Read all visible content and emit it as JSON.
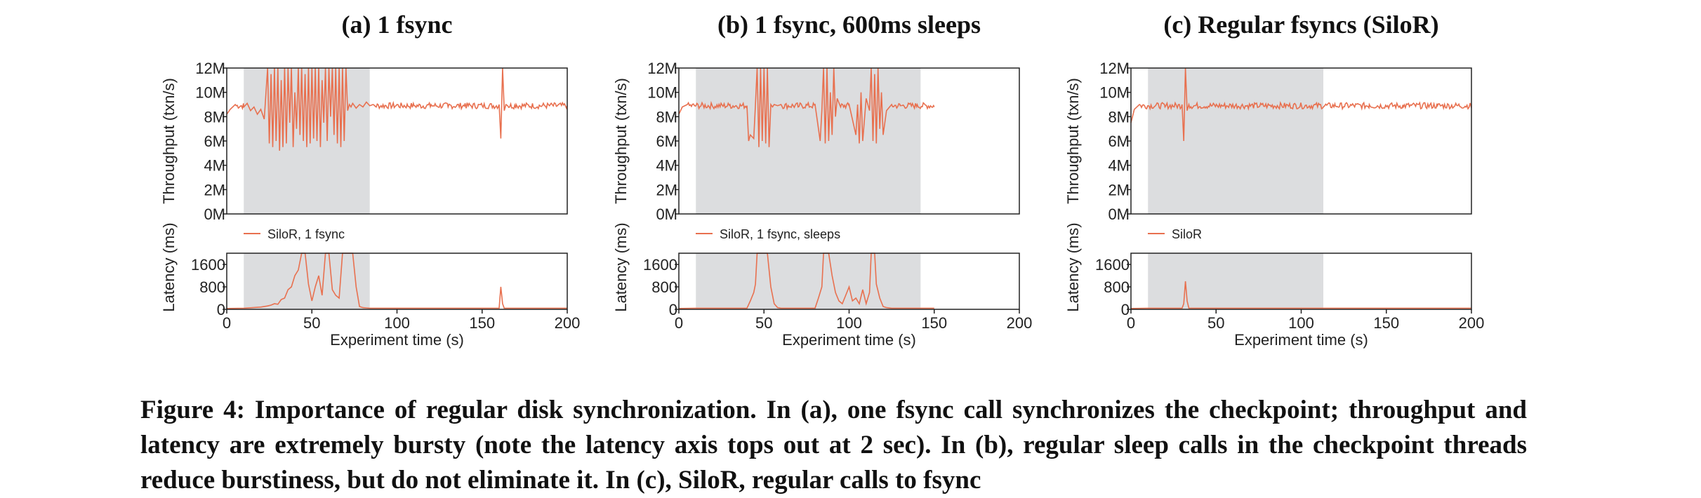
{
  "colors": {
    "series": "#e8704f",
    "shade": "#dcdddf",
    "axis": "#222222"
  },
  "caption": "Figure 4: Importance of regular disk synchronization. In (a), one fsync call synchronizes the checkpoint; throughput and latency are extremely bursty (note the latency axis tops out at 2 sec). In (b), regular sleep calls in the checkpoint threads reduce burstiness, but do not eliminate it. In (c), SiloR, regular calls to fsync",
  "chart_data": [
    {
      "type": "line",
      "title": "(a) 1 fsync",
      "xlabel": "Experiment time (s)",
      "xlim": [
        0,
        200
      ],
      "xticks": [
        "0",
        "50",
        "100",
        "150",
        "200"
      ],
      "shaded_region_s": [
        10,
        84
      ],
      "throughput": {
        "ylabel": "Throughput (txn/s)",
        "ylim": [
          0,
          12
        ],
        "yticks": [
          "0M",
          "2M",
          "4M",
          "6M",
          "8M",
          "10M",
          "12M"
        ],
        "legend": "SiloR, 1 fsync",
        "series_x": [
          0,
          2,
          5,
          10,
          12,
          14,
          16,
          18,
          20,
          22,
          24,
          25,
          26,
          27,
          28,
          29,
          30,
          31,
          32,
          33,
          34,
          35,
          36,
          37,
          38,
          39,
          40,
          41,
          42,
          43,
          44,
          45,
          46,
          47,
          48,
          49,
          50,
          51,
          52,
          53,
          54,
          55,
          56,
          57,
          58,
          59,
          60,
          61,
          62,
          63,
          64,
          65,
          66,
          67,
          68,
          69,
          70,
          71,
          72,
          73,
          74,
          76,
          78,
          80,
          82,
          84,
          86,
          90,
          100,
          110,
          120,
          130,
          140,
          150,
          160,
          161,
          162,
          163,
          164,
          165,
          170,
          180,
          190,
          200
        ],
        "series_y": [
          8.2,
          8.6,
          9.0,
          8.8,
          9.1,
          8.5,
          8.8,
          8.2,
          8.6,
          7.8,
          12,
          5.8,
          11.5,
          5.5,
          12,
          6.0,
          12,
          5.2,
          11,
          5.5,
          12,
          5.8,
          12,
          7.5,
          12,
          5.5,
          10,
          7.0,
          12,
          6.5,
          12,
          6.0,
          11.5,
          5.5,
          12,
          5.8,
          12,
          6.2,
          12,
          6.0,
          12,
          5.5,
          11,
          7.5,
          12,
          6.0,
          12,
          8.0,
          12,
          6.5,
          12,
          5.8,
          12,
          5.5,
          12,
          6.0,
          12,
          8.5,
          9.0,
          8.8,
          9.1,
          8.7,
          9.0,
          8.8,
          9.2,
          8.9,
          9.0,
          8.8,
          9.0,
          8.9,
          9.0,
          8.8,
          9.1,
          8.9,
          9.0,
          6.2,
          12,
          8.5,
          9.0,
          8.9,
          9.0,
          8.8,
          9.0,
          8.9
        ],
        "noise_range": [
          60,
          200
        ]
      },
      "latency": {
        "ylabel": "Latency (ms)",
        "ylim": [
          0,
          2000
        ],
        "yticks": [
          "0",
          "800",
          "1600"
        ],
        "series_x": [
          0,
          10,
          20,
          24,
          26,
          28,
          30,
          32,
          34,
          36,
          38,
          40,
          42,
          44,
          46,
          48,
          50,
          52,
          54,
          56,
          58,
          60,
          62,
          64,
          66,
          68,
          70,
          72,
          74,
          76,
          78,
          80,
          82,
          84,
          100,
          150,
          160,
          161,
          162,
          163,
          170,
          200
        ],
        "series_y": [
          30,
          40,
          80,
          120,
          150,
          200,
          180,
          350,
          400,
          700,
          800,
          1200,
          1400,
          2000,
          2000,
          900,
          300,
          800,
          1200,
          500,
          2000,
          2000,
          700,
          500,
          400,
          2000,
          2000,
          2000,
          2000,
          800,
          100,
          60,
          50,
          40,
          40,
          40,
          40,
          800,
          200,
          40,
          40,
          40
        ]
      }
    },
    {
      "type": "line",
      "title": "(b) 1 fsync, 600ms sleeps",
      "xlabel": "Experiment time (s)",
      "xlim": [
        0,
        200
      ],
      "xticks": [
        "0",
        "50",
        "100",
        "150",
        "200"
      ],
      "shaded_region_s": [
        10,
        142
      ],
      "throughput": {
        "ylabel": "Throughput (txn/s)",
        "ylim": [
          0,
          12
        ],
        "yticks": [
          "0M",
          "2M",
          "4M",
          "6M",
          "8M",
          "10M",
          "12M"
        ],
        "legend": "SiloR, 1 fsync, sleeps",
        "series_x": [
          0,
          2,
          5,
          10,
          20,
          30,
          40,
          41,
          42,
          44,
          45,
          46,
          47,
          48,
          49,
          50,
          51,
          52,
          53,
          54,
          55,
          56,
          58,
          60,
          70,
          80,
          83,
          84,
          85,
          86,
          87,
          88,
          89,
          90,
          91,
          92,
          93,
          95,
          100,
          104,
          105,
          106,
          107,
          108,
          110,
          112,
          113,
          114,
          115,
          116,
          117,
          118,
          119,
          120,
          122,
          125,
          130,
          140,
          150
        ],
        "series_y": [
          8.2,
          8.8,
          9.0,
          8.9,
          8.8,
          9.0,
          8.9,
          6.0,
          6.5,
          6.2,
          9.0,
          12,
          5.5,
          12,
          6.0,
          12,
          5.8,
          12,
          5.5,
          9.0,
          8.8,
          9.0,
          8.9,
          9.0,
          8.8,
          9.0,
          6.0,
          8.5,
          12,
          5.8,
          12,
          6.0,
          10,
          6.5,
          12,
          8.0,
          9.5,
          8.8,
          9.0,
          6.5,
          9.0,
          5.8,
          10,
          6.0,
          9.5,
          8.5,
          12,
          6.0,
          11.5,
          5.8,
          12,
          7.0,
          10,
          6.5,
          8.5,
          9.0,
          8.9,
          9.0,
          8.8
        ],
        "noise_range": [
          0,
          150
        ]
      },
      "latency": {
        "ylabel": "Latency (ms)",
        "ylim": [
          0,
          2000
        ],
        "yticks": [
          "0",
          "800",
          "1600"
        ],
        "series_x": [
          0,
          10,
          30,
          40,
          42,
          44,
          45,
          46,
          48,
          50,
          52,
          54,
          56,
          58,
          60,
          70,
          80,
          82,
          84,
          85,
          86,
          88,
          90,
          92,
          94,
          96,
          98,
          100,
          102,
          104,
          106,
          108,
          110,
          112,
          113,
          114,
          115,
          116,
          118,
          120,
          122,
          125,
          130,
          140,
          150
        ],
        "series_y": [
          30,
          40,
          40,
          40,
          300,
          600,
          900,
          2000,
          2000,
          2000,
          2000,
          800,
          200,
          60,
          40,
          40,
          40,
          400,
          800,
          2000,
          2000,
          2000,
          1200,
          600,
          300,
          200,
          500,
          800,
          300,
          400,
          200,
          700,
          200,
          600,
          2000,
          2000,
          2000,
          900,
          400,
          100,
          60,
          40,
          40,
          40,
          40
        ]
      }
    },
    {
      "type": "line",
      "title": "(c) Regular fsyncs (SiloR)",
      "xlabel": "Experiment time (s)",
      "xlim": [
        0,
        200
      ],
      "xticks": [
        "0",
        "50",
        "100",
        "150",
        "200"
      ],
      "shaded_region_s": [
        10,
        113
      ],
      "throughput": {
        "ylabel": "Throughput (txn/s)",
        "ylim": [
          0,
          12
        ],
        "yticks": [
          "0M",
          "2M",
          "4M",
          "6M",
          "8M",
          "10M",
          "12M"
        ],
        "legend": "SiloR",
        "series_x": [
          0,
          2,
          5,
          10,
          20,
          30,
          31,
          32,
          33,
          34,
          40,
          60,
          80,
          100,
          120,
          140,
          160,
          180,
          200
        ],
        "series_y": [
          7.5,
          8.6,
          9.0,
          8.9,
          8.8,
          9.0,
          6.0,
          12,
          8.5,
          9.0,
          8.8,
          8.9,
          8.8,
          9.0,
          8.9,
          9.0,
          8.8,
          8.9,
          8.9
        ],
        "noise_range": [
          0,
          200
        ]
      },
      "latency": {
        "ylabel": "Latency (ms)",
        "ylim": [
          0,
          2000
        ],
        "yticks": [
          "0",
          "800",
          "1600"
        ],
        "series_x": [
          0,
          10,
          20,
          30,
          31,
          32,
          33,
          34,
          40,
          100,
          150,
          200
        ],
        "series_y": [
          30,
          40,
          40,
          40,
          200,
          1000,
          300,
          40,
          40,
          40,
          40,
          40
        ]
      }
    }
  ]
}
